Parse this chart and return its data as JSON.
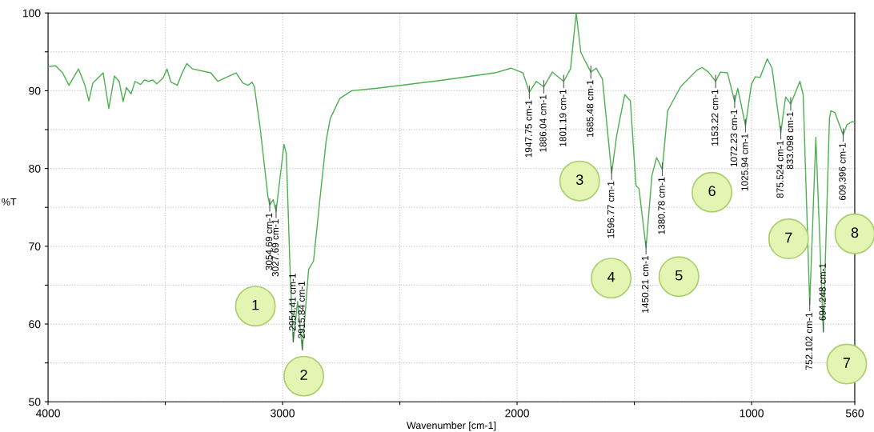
{
  "chart_data": {
    "type": "line",
    "xlabel": "Wavenumber [cm-1]",
    "ylabel": "%T",
    "xlim": [
      4000,
      560
    ],
    "xticks": [
      4000,
      {
        "value": 3500,
        "label": null
      },
      3000,
      {
        "value": 2500,
        "label": null
      },
      2000,
      {
        "value": 1500,
        "label": null
      },
      1000,
      560
    ],
    "ylim": [
      50,
      100
    ],
    "yticks": [
      50,
      {
        "value": 55,
        "label": null
      },
      60,
      {
        "value": 65,
        "label": null
      },
      70,
      {
        "value": 75,
        "label": null
      },
      80,
      {
        "value": 85,
        "label": null
      },
      90,
      {
        "value": 95,
        "label": null
      },
      100
    ],
    "grid": true,
    "legend": false,
    "series": [
      {
        "color": "#4caf50",
        "x": [
          3998,
          3968,
          3938,
          3911,
          3870,
          3843,
          3826,
          3809,
          3765,
          3741,
          3717,
          3697,
          3680,
          3666,
          3646,
          3629,
          3605,
          3588,
          3571,
          3554,
          3537,
          3510,
          3493,
          3476,
          3449,
          3428,
          3408,
          3384,
          3306,
          3276,
          3249,
          3198,
          3170,
          3147,
          3130,
          3120,
          3096,
          3062,
          3054.69,
          3040,
          3027.69,
          2994,
          2984,
          2967,
          2954.41,
          2936,
          2915.84,
          2889,
          2868,
          2841,
          2814,
          2797,
          2756,
          2705,
          2603,
          2332,
          2094,
          2026,
          1975,
          1947.75,
          1918,
          1886.04,
          1850,
          1801.19,
          1772,
          1748,
          1728,
          1685.48,
          1663,
          1636,
          1596.77,
          1575,
          1541,
          1517,
          1493,
          1480,
          1450.21,
          1425,
          1405,
          1380.78,
          1358,
          1303,
          1235,
          1212,
          1184,
          1153.22,
          1133,
          1103,
          1072.23,
          1059,
          1025.94,
          1001,
          984,
          964,
          933,
          913,
          875.524,
          855,
          833.098,
          794,
          780,
          752.102,
          726,
          694.248,
          668,
          662,
          645,
          609.396,
          594,
          573,
          560
        ],
        "values": [
          93.1,
          93.2,
          92.3,
          90.7,
          92.8,
          90.7,
          88.7,
          91.0,
          92.3,
          87.7,
          91.9,
          91.2,
          88.6,
          90.4,
          89.6,
          91.2,
          90.8,
          91.4,
          91.2,
          91.4,
          90.9,
          91.6,
          92.8,
          91.1,
          90.7,
          92.3,
          93.5,
          92.8,
          92.3,
          91.2,
          91.6,
          92.3,
          91.0,
          90.7,
          91.1,
          90.5,
          85.3,
          76.3,
          75.3,
          76.0,
          74.5,
          83.1,
          81.9,
          66.0,
          57.7,
          62.9,
          56.7,
          67.0,
          68.1,
          76.0,
          83.6,
          86.4,
          89.0,
          90.0,
          90.3,
          91.3,
          92.3,
          92.9,
          92.3,
          89.8,
          91.2,
          90.5,
          92.4,
          91.2,
          92.8,
          100.0,
          94.9,
          92.4,
          92.9,
          91.5,
          79.4,
          84.3,
          89.5,
          88.7,
          77.8,
          77.4,
          69.8,
          79.1,
          81.4,
          79.9,
          87.4,
          90.5,
          92.6,
          93.0,
          92.4,
          91.2,
          92.4,
          92.3,
          88.6,
          90.3,
          85.5,
          90.8,
          91.8,
          91.7,
          94.1,
          92.9,
          84.6,
          89.2,
          88.3,
          91.2,
          89.5,
          62.5,
          84.0,
          59.0,
          86.4,
          87.4,
          87.2,
          84.3,
          85.6,
          86.0,
          86.0
        ]
      }
    ],
    "annotations": [
      "1",
      "2",
      "3",
      "4",
      "5",
      "6",
      "7",
      "8",
      "7",
      {
        "text": "3054.69 cm-1",
        "x": 3054.69,
        "y": 75.3
      },
      {
        "text": "3027.69 cm-1",
        "x": 3027.69,
        "y": 74.5
      },
      {
        "text": "2954.41 cm-1",
        "x": 2954.41,
        "y": 57.7
      },
      {
        "text": "2915.84 cm-1",
        "x": 2915.84,
        "y": 56.7
      },
      {
        "text": "1947.75 cm-1",
        "x": 1947.75,
        "y": 89.8
      },
      {
        "text": "1886.04 cm-1",
        "x": 1886.04,
        "y": 90.5
      },
      {
        "text": "1801.19 cm-1",
        "x": 1801.19,
        "y": 91.2
      },
      {
        "text": "1685.48 cm-1",
        "x": 1685.48,
        "y": 92.4
      },
      {
        "text": "1596.77 cm-1",
        "x": 1596.77,
        "y": 79.4
      },
      {
        "text": "1450.21 cm-1",
        "x": 1450.21,
        "y": 69.8
      },
      {
        "text": "1380.78 cm-1",
        "x": 1380.78,
        "y": 79.9
      },
      {
        "text": "1153.22 cm-1",
        "x": 1153.22,
        "y": 91.2
      },
      {
        "text": "1072.23 cm-1",
        "x": 1072.23,
        "y": 88.6
      },
      {
        "text": "1025.94 cm-1",
        "x": 1025.94,
        "y": 85.5
      },
      {
        "text": "875.524 cm-1",
        "x": 875.524,
        "y": 84.6
      },
      {
        "text": "833.098 cm-1",
        "x": 833.098,
        "y": 88.3
      },
      {
        "text": "752.102 cm-1",
        "x": 752.102,
        "y": 62.5
      },
      {
        "text": "694.248 cm-1",
        "x": 694.248,
        "y": 59.0
      },
      {
        "text": "609.396 cm-1",
        "x": 609.396,
        "y": 84.3
      }
    ]
  }
}
